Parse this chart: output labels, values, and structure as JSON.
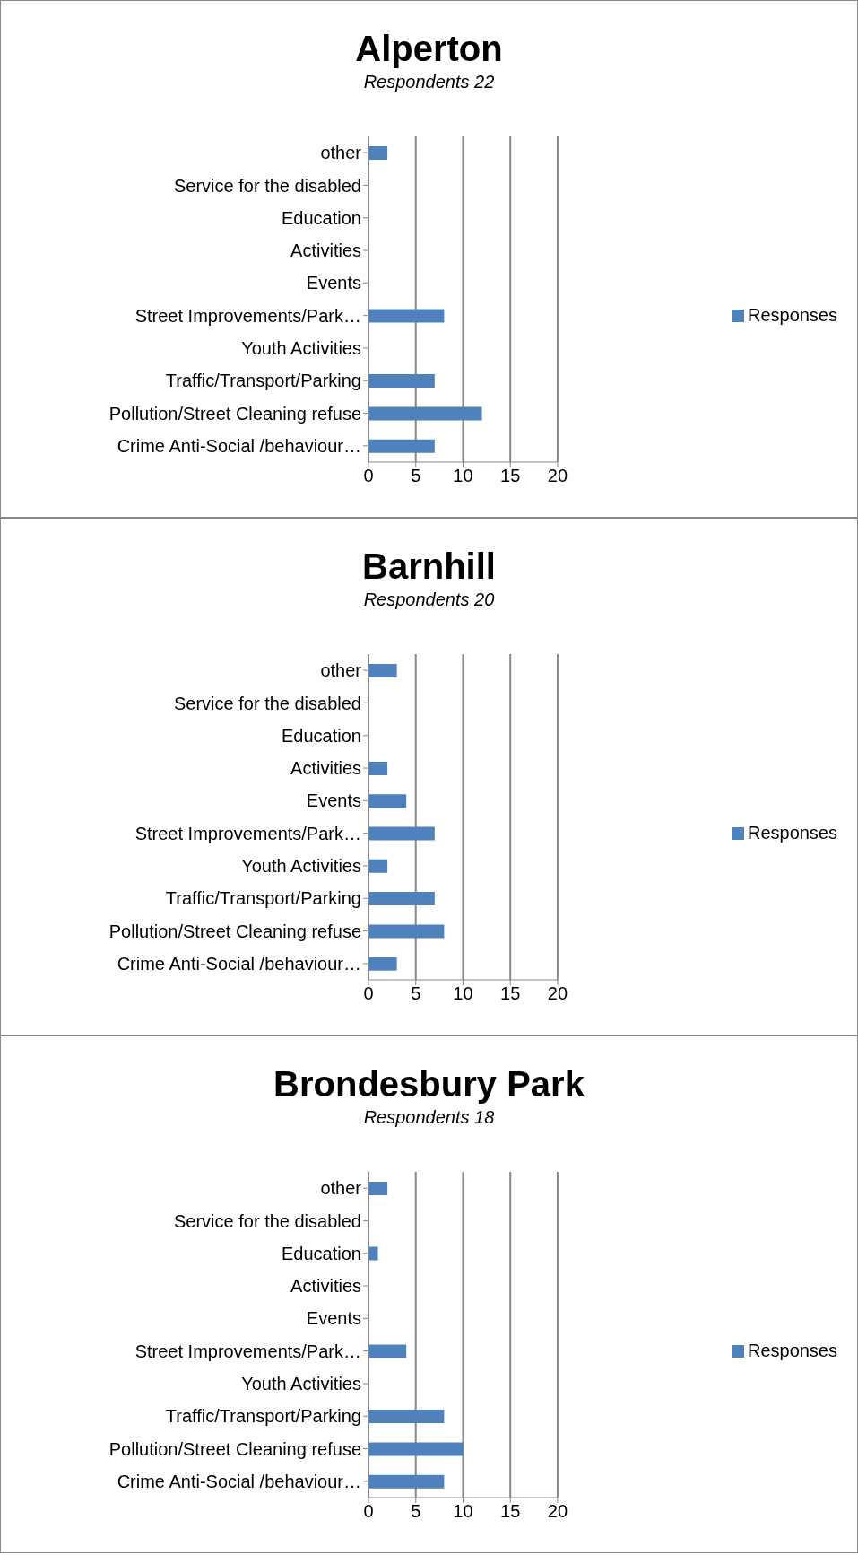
{
  "chart_data": [
    {
      "type": "bar",
      "orientation": "horizontal",
      "title": "Alperton",
      "subtitle": "Respondents 22",
      "categories": [
        "other",
        "Service for the disabled",
        "Education",
        "Activities",
        "Events",
        "Street Improvements/Park…",
        "Youth Activities",
        "Traffic/Transport/Parking",
        "Pollution/Street Cleaning refuse",
        "Crime Anti-Social /behaviour…"
      ],
      "series": [
        {
          "name": "Responses",
          "color": "#4f81bd",
          "values": [
            2,
            0,
            0,
            0,
            0,
            8,
            0,
            7,
            12,
            7
          ]
        }
      ],
      "xlim": [
        0,
        20
      ],
      "xticks": [
        0,
        5,
        10,
        15,
        20
      ],
      "grid": "x",
      "legend": "right"
    },
    {
      "type": "bar",
      "orientation": "horizontal",
      "title": "Barnhill",
      "subtitle": "Respondents 20",
      "categories": [
        "other",
        "Service for the disabled",
        "Education",
        "Activities",
        "Events",
        "Street Improvements/Park…",
        "Youth Activities",
        "Traffic/Transport/Parking",
        "Pollution/Street Cleaning refuse",
        "Crime Anti-Social /behaviour…"
      ],
      "series": [
        {
          "name": "Responses",
          "color": "#4f81bd",
          "values": [
            3,
            0,
            0,
            2,
            4,
            7,
            2,
            7,
            8,
            3
          ]
        }
      ],
      "xlim": [
        0,
        20
      ],
      "xticks": [
        0,
        5,
        10,
        15,
        20
      ],
      "grid": "x",
      "legend": "right"
    },
    {
      "type": "bar",
      "orientation": "horizontal",
      "title": "Brondesbury Park",
      "subtitle": "Respondents 18",
      "categories": [
        "other",
        "Service for the disabled",
        "Education",
        "Activities",
        "Events",
        "Street Improvements/Park…",
        "Youth Activities",
        "Traffic/Transport/Parking",
        "Pollution/Street Cleaning refuse",
        "Crime Anti-Social /behaviour…"
      ],
      "series": [
        {
          "name": "Responses",
          "color": "#4f81bd",
          "values": [
            2,
            0,
            1,
            0,
            0,
            4,
            0,
            8,
            10,
            8
          ]
        }
      ],
      "xlim": [
        0,
        20
      ],
      "xticks": [
        0,
        5,
        10,
        15,
        20
      ],
      "grid": "x",
      "legend": "right"
    }
  ]
}
